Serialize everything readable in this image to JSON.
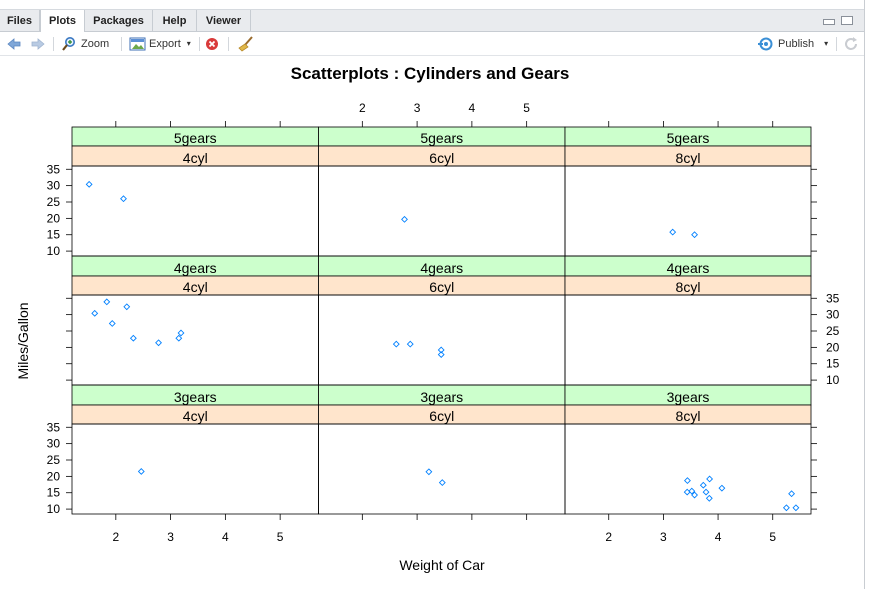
{
  "tabs": [
    {
      "label": "Files"
    },
    {
      "label": "Plots"
    },
    {
      "label": "Packages"
    },
    {
      "label": "Help"
    },
    {
      "label": "Viewer"
    }
  ],
  "toolbar": {
    "zoom_label": "Zoom",
    "export_label": "Export",
    "publish_label": "Publish"
  },
  "colors": {
    "strip_gear": "#ccffcc",
    "strip_cyl": "#ffe5cc",
    "points": "#0080ff"
  },
  "chart_data": {
    "type": "scatter",
    "title": "Scatterplots : Cylinders and Gears",
    "xlabel": "Weight of Car",
    "ylabel": "Miles/Gallon",
    "xlim": [
      1.2,
      5.7
    ],
    "ylim": [
      8.5,
      36
    ],
    "x_ticks": [
      2,
      3,
      4,
      5
    ],
    "y_ticks": [
      10,
      15,
      20,
      25,
      30,
      35
    ],
    "panels": [
      {
        "gear": "3gears",
        "cyl": "4cyl",
        "points": [
          [
            2.465,
            21.5
          ]
        ]
      },
      {
        "gear": "3gears",
        "cyl": "6cyl",
        "points": [
          [
            3.215,
            21.4
          ],
          [
            3.46,
            18.1
          ]
        ]
      },
      {
        "gear": "3gears",
        "cyl": "8cyl",
        "points": [
          [
            3.44,
            18.7
          ],
          [
            3.57,
            14.3
          ],
          [
            4.07,
            16.4
          ],
          [
            3.73,
            17.3
          ],
          [
            3.78,
            15.2
          ],
          [
            5.25,
            10.4
          ],
          [
            5.424,
            10.4
          ],
          [
            5.345,
            14.7
          ],
          [
            3.52,
            15.5
          ],
          [
            3.435,
            15.2
          ],
          [
            3.84,
            13.3
          ],
          [
            3.845,
            19.2
          ]
        ]
      },
      {
        "gear": "4gears",
        "cyl": "4cyl",
        "points": [
          [
            2.32,
            22.8
          ],
          [
            3.19,
            24.4
          ],
          [
            3.15,
            22.8
          ],
          [
            2.2,
            32.4
          ],
          [
            1.615,
            30.4
          ],
          [
            1.835,
            33.9
          ],
          [
            1.935,
            27.3
          ],
          [
            2.78,
            21.4
          ]
        ]
      },
      {
        "gear": "4gears",
        "cyl": "6cyl",
        "points": [
          [
            2.62,
            21.0
          ],
          [
            2.875,
            21.0
          ],
          [
            3.44,
            19.2
          ],
          [
            3.44,
            17.8
          ]
        ]
      },
      {
        "gear": "4gears",
        "cyl": "8cyl",
        "points": []
      },
      {
        "gear": "5gears",
        "cyl": "4cyl",
        "points": [
          [
            2.14,
            26.0
          ],
          [
            1.513,
            30.4
          ]
        ]
      },
      {
        "gear": "5gears",
        "cyl": "6cyl",
        "points": [
          [
            2.77,
            19.7
          ]
        ]
      },
      {
        "gear": "5gears",
        "cyl": "8cyl",
        "points": [
          [
            3.17,
            15.8
          ],
          [
            3.57,
            15.0
          ]
        ]
      }
    ]
  }
}
